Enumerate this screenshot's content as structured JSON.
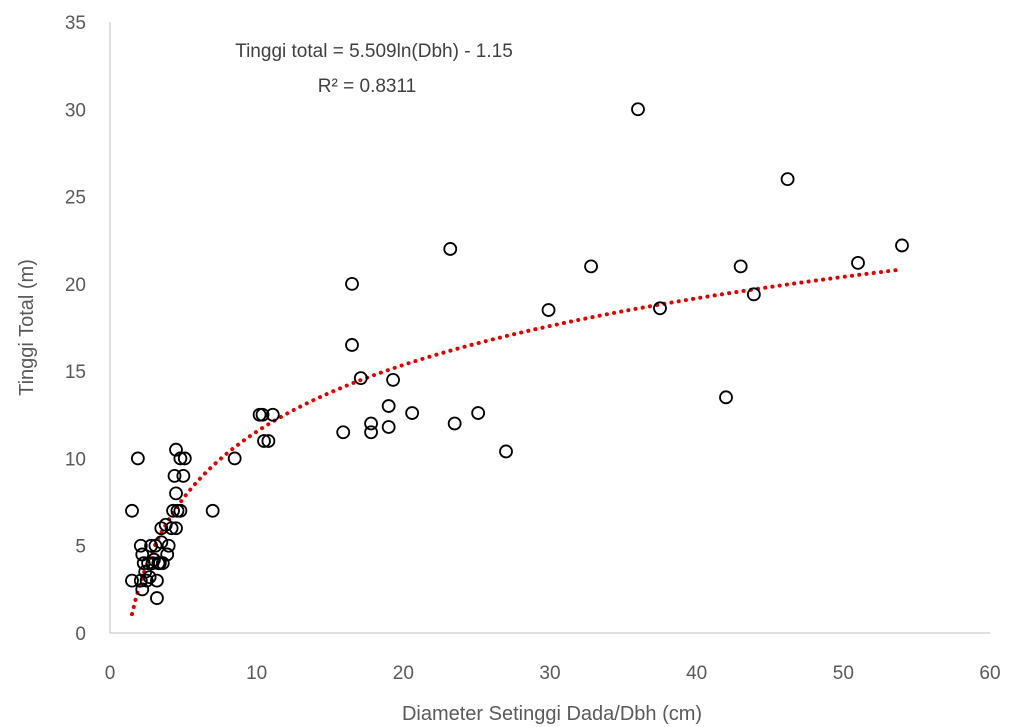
{
  "chart_data": {
    "type": "scatter",
    "title": "",
    "xlabel": "Diameter Setinggi Dada/Dbh (cm)",
    "ylabel": "Tinggi Total (m)",
    "xlim": [
      0,
      60
    ],
    "ylim": [
      0,
      35
    ],
    "xticks": [
      0,
      10,
      20,
      30,
      40,
      50,
      60
    ],
    "yticks": [
      0,
      5,
      10,
      15,
      20,
      25,
      30,
      35
    ],
    "grid": false,
    "legend": "none",
    "trendline": {
      "type": "logarithmic",
      "a": 5.509,
      "b": -1.15,
      "x_range": [
        1.5,
        54
      ],
      "equation_label": "Tinggi total = 5.509ln(Dbh) - 1.15",
      "r2_label": "R² = 0.8311",
      "color": "#e00000"
    },
    "marker_color": "#000000",
    "points": [
      [
        1.5,
        7.0
      ],
      [
        1.5,
        3.0
      ],
      [
        1.9,
        10.0
      ],
      [
        2.1,
        5.0
      ],
      [
        2.2,
        4.5
      ],
      [
        2.1,
        3.0
      ],
      [
        2.2,
        2.5
      ],
      [
        2.3,
        4.0
      ],
      [
        2.4,
        3.5
      ],
      [
        2.5,
        3.0
      ],
      [
        2.6,
        4.0
      ],
      [
        2.7,
        3.2
      ],
      [
        2.8,
        5.0
      ],
      [
        2.9,
        4.0
      ],
      [
        3.0,
        4.2
      ],
      [
        3.1,
        5.0
      ],
      [
        3.2,
        2.0
      ],
      [
        3.2,
        3.0
      ],
      [
        3.3,
        4.0
      ],
      [
        3.4,
        4.0
      ],
      [
        3.5,
        5.2
      ],
      [
        3.5,
        6.0
      ],
      [
        3.6,
        4.0
      ],
      [
        3.8,
        6.2
      ],
      [
        3.9,
        4.5
      ],
      [
        4.0,
        5.0
      ],
      [
        4.2,
        6.0
      ],
      [
        4.3,
        7.0
      ],
      [
        4.4,
        9.0
      ],
      [
        4.5,
        10.5
      ],
      [
        4.5,
        8.0
      ],
      [
        4.5,
        6.0
      ],
      [
        4.6,
        7.0
      ],
      [
        4.8,
        10.0
      ],
      [
        4.8,
        7.0
      ],
      [
        5.0,
        9.0
      ],
      [
        5.1,
        10.0
      ],
      [
        7.0,
        7.0
      ],
      [
        8.5,
        10.0
      ],
      [
        10.2,
        12.5
      ],
      [
        10.4,
        12.5
      ],
      [
        10.5,
        11.0
      ],
      [
        10.8,
        11.0
      ],
      [
        11.1,
        12.5
      ],
      [
        15.9,
        11.5
      ],
      [
        16.5,
        20.0
      ],
      [
        16.5,
        16.5
      ],
      [
        17.1,
        14.6
      ],
      [
        17.8,
        12.0
      ],
      [
        17.8,
        11.5
      ],
      [
        19.0,
        13.0
      ],
      [
        19.0,
        11.8
      ],
      [
        19.3,
        14.5
      ],
      [
        20.6,
        12.6
      ],
      [
        23.2,
        22.0
      ],
      [
        23.5,
        12.0
      ],
      [
        25.1,
        12.6
      ],
      [
        27.0,
        10.4
      ],
      [
        29.9,
        18.5
      ],
      [
        32.8,
        21.0
      ],
      [
        36.0,
        30.0
      ],
      [
        37.5,
        18.6
      ],
      [
        42.0,
        13.5
      ],
      [
        43.0,
        21.0
      ],
      [
        43.9,
        19.4
      ],
      [
        46.2,
        26.0
      ],
      [
        51.0,
        21.2
      ],
      [
        54.0,
        22.2
      ]
    ]
  }
}
